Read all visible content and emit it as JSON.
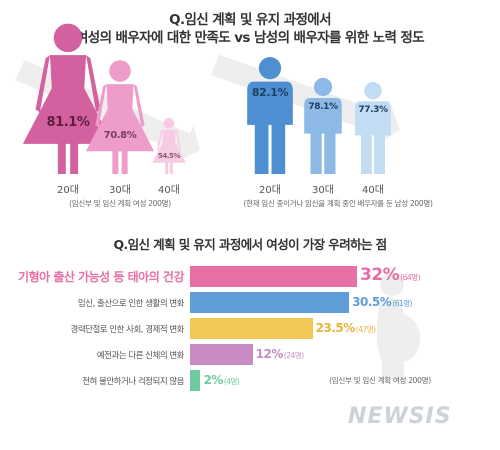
{
  "header": {
    "title_line1": "Q.임신 계획 및 유지 과정에서",
    "title_line2": "여성의 배우자에 대한 만족도 vs 남성의 배우자를 위한 노력 정도"
  },
  "colors": {
    "female_dark": "#d4619f",
    "female_mid": "#ee9dca",
    "female_light": "#f7cbe3",
    "male_dark": "#4d8fd1",
    "male_mid": "#8db9e6",
    "male_light": "#c2dcf4",
    "arrow": "#eeeeee",
    "bar_pink": "#e76fa6",
    "bar_blue": "#5f9ed8",
    "bar_yellow": "#f1c855",
    "bar_purple": "#c98bc4",
    "bar_green": "#6fcaa0",
    "pregnant_figure": "#eeeeee"
  },
  "chart_data": [
    {
      "type": "bar",
      "title": "Q.임신 계획 및 유지 과정에서 여성의 배우자에 대한 만족도",
      "categories": [
        "20대",
        "30대",
        "40대"
      ],
      "values": [
        81.1,
        70.8,
        54.5
      ],
      "value_labels": [
        "81.1%",
        "70.8%",
        "54.5%"
      ],
      "note": "(임신부 및 임신 계획 여성 200명)"
    },
    {
      "type": "bar",
      "title": "남성의 배우자를 위한 노력 정도",
      "categories": [
        "20대",
        "30대",
        "40대"
      ],
      "values": [
        82.1,
        78.1,
        77.3
      ],
      "value_labels": [
        "82.1%",
        "78.1%",
        "77.3%"
      ],
      "note": "(현재 임신 중이거나 임신을 계획 중인 배우자를 둔 남성 200명)"
    },
    {
      "type": "bar",
      "title": "Q.임신 계획 및 유지 과정에서 여성이 가장 우려하는 점",
      "categories": [
        "기형아 출산 가능성 등 태아의 건강",
        "임신, 출산으로 인한 생활의 변화",
        "경력단절로 인한 사회, 경제적 변화",
        "예전과는 다른 신체의 변화",
        "전혀 불안하거나 걱정되지 않음"
      ],
      "values": [
        32,
        30.5,
        23.5,
        12,
        2
      ],
      "value_labels": [
        "32%",
        "30.5%",
        "23.5%",
        "12%",
        "2%"
      ],
      "counts": [
        "(64명)",
        "(61명)",
        "(47명)",
        "(24명)",
        "(4명)"
      ],
      "xlim": [
        0,
        32
      ],
      "note": "(임신부 및 임신 계획 여성 200명)"
    }
  ],
  "watermark": "NEWSIS"
}
